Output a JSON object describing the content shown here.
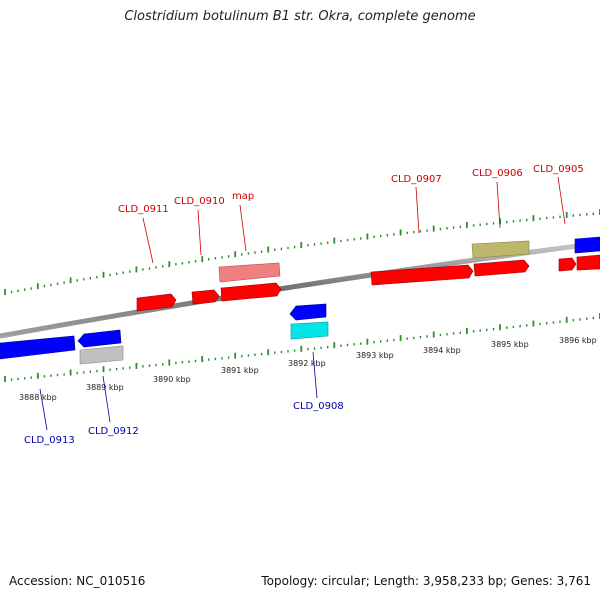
{
  "title": "Clostridium botulinum B1 str. Okra, complete genome",
  "footer": {
    "accession": "Accession: NC_010516",
    "summary": "Topology: circular; Length: 3,958,233 bp; Genes: 3,761"
  },
  "colors": {
    "forward_gene": "#ff0000",
    "reverse_gene": "#0000ff",
    "forward_label": "#cc0000",
    "reverse_label": "#0000aa",
    "tick": "#2e8b2e",
    "backbone": "#808080"
  },
  "kbp_labels": [
    "3888 kbp",
    "3889 kbp",
    "3890 kbp",
    "3891 kbp",
    "3892 kbp",
    "3893 kbp",
    "3894 kbp",
    "3895 kbp",
    "3896 kbp"
  ],
  "gene_labels": [
    {
      "text": "CLD_0911",
      "strand": "forward"
    },
    {
      "text": "CLD_0910",
      "strand": "forward"
    },
    {
      "text": "map",
      "strand": "forward"
    },
    {
      "text": "CLD_0907",
      "strand": "forward"
    },
    {
      "text": "CLD_0906",
      "strand": "forward"
    },
    {
      "text": "CLD_0905",
      "strand": "forward"
    },
    {
      "text": "CLD_0913",
      "strand": "reverse"
    },
    {
      "text": "CLD_0912",
      "strand": "reverse"
    },
    {
      "text": "CLD_0908",
      "strand": "reverse"
    }
  ]
}
